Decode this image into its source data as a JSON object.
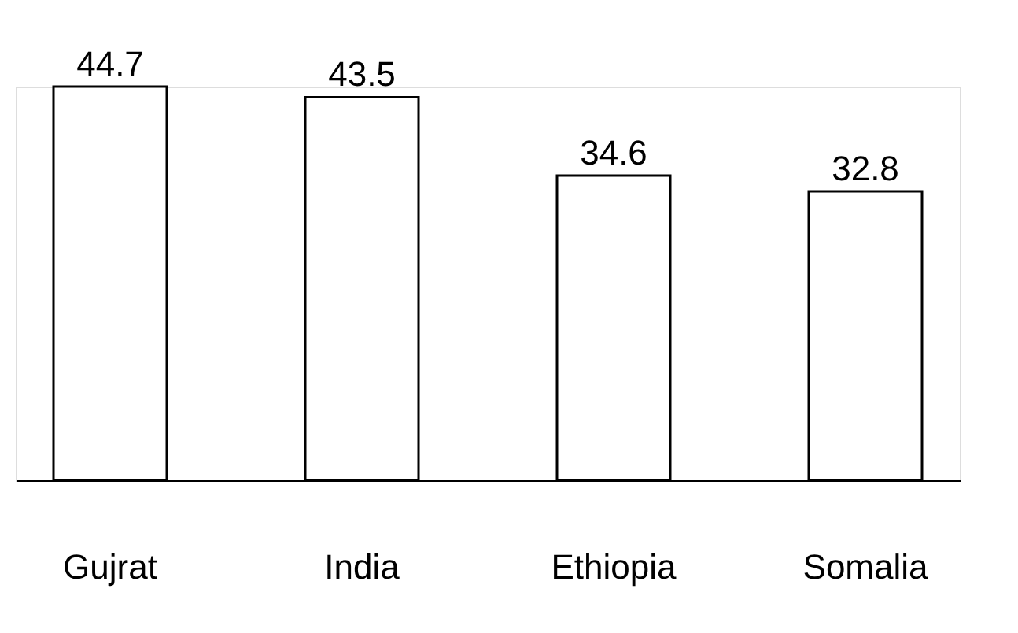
{
  "chart_data": {
    "type": "bar",
    "categories": [
      "Gujrat",
      "India",
      "Ethiopia",
      "Somalia"
    ],
    "values": [
      44.7,
      43.5,
      34.6,
      32.8
    ],
    "color": "#ffffff",
    "data_labels": true
  }
}
